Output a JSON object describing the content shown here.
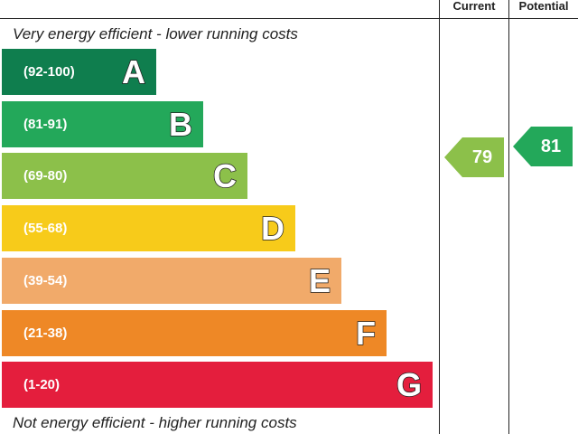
{
  "header": {
    "current_label": "Current",
    "potential_label": "Potential"
  },
  "captions": {
    "top": "Very energy efficient - lower running costs",
    "bottom": "Not energy efficient - higher running costs"
  },
  "chart_data": {
    "type": "bar",
    "bands": [
      {
        "letter": "A",
        "range": "(92-100)",
        "color": "#0f7e4e"
      },
      {
        "letter": "B",
        "range": "(81-91)",
        "color": "#23a85a"
      },
      {
        "letter": "C",
        "range": "(69-80)",
        "color": "#8cc04a"
      },
      {
        "letter": "D",
        "range": "(55-68)",
        "color": "#f7cb1a"
      },
      {
        "letter": "E",
        "range": "(39-54)",
        "color": "#f1aa6a"
      },
      {
        "letter": "F",
        "range": "(21-38)",
        "color": "#ee8826"
      },
      {
        "letter": "G",
        "range": "(1-20)",
        "color": "#e41e3d"
      }
    ],
    "current": {
      "value": "79",
      "band": "C",
      "color": "#8cc04a"
    },
    "potential": {
      "value": "81",
      "band": "B",
      "color": "#23a85a"
    }
  }
}
